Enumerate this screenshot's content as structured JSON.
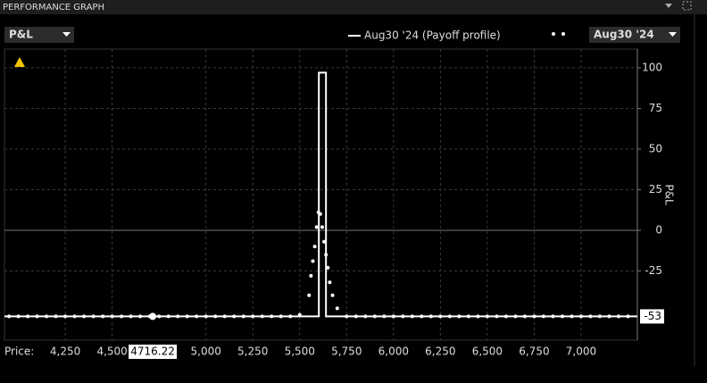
{
  "header": {
    "title": "PERFORMANCE GRAPH"
  },
  "controls": {
    "metric": "P&L",
    "date": "Aug30 '24"
  },
  "chart_data": {
    "type": "line",
    "y_label": "P&L",
    "x_label": "Price:",
    "xlim": [
      3926,
      7300
    ],
    "ylim": [
      -67.6,
      111.5
    ],
    "xticks": [
      {
        "value": 4250,
        "label": "4,250"
      },
      {
        "value": 4500,
        "label": "4,500"
      },
      {
        "value": 5000,
        "label": "5,000"
      },
      {
        "value": 5250,
        "label": "5,250"
      },
      {
        "value": 5500,
        "label": "5,500"
      },
      {
        "value": 5750,
        "label": "5,750"
      },
      {
        "value": 6000,
        "label": "6,000"
      },
      {
        "value": 6250,
        "label": "6,250"
      },
      {
        "value": 6500,
        "label": "6,500"
      },
      {
        "value": 6750,
        "label": "6,750"
      },
      {
        "value": 7000,
        "label": "7,000"
      }
    ],
    "yticks": [
      100,
      75,
      50,
      25,
      0,
      -25
    ],
    "grid": true,
    "series": [
      {
        "name": "Aug30 '24 (Payoff profile)",
        "color": "#ffffff",
        "style": "line",
        "x": [
          3926,
          5602,
          5602,
          5640,
          5640,
          7300
        ],
        "values": [
          -53,
          -53,
          97,
          97,
          -53,
          -53
        ]
      },
      {
        "color": "#ffffff",
        "style": "dots",
        "x": [
          3950,
          4000,
          4050,
          4100,
          4150,
          4200,
          4250,
          4300,
          4350,
          4400,
          4450,
          4500,
          4550,
          4600,
          4650,
          4700,
          4750,
          4800,
          4850,
          4900,
          4950,
          5000,
          5050,
          5100,
          5150,
          5200,
          5250,
          5300,
          5350,
          5400,
          5450,
          5500,
          5550,
          5560,
          5570,
          5580,
          5590,
          5600,
          5610,
          5620,
          5630,
          5640,
          5650,
          5660,
          5675,
          5700,
          5750,
          5800,
          5850,
          5900,
          5950,
          6000,
          6050,
          6100,
          6150,
          6200,
          6250,
          6300,
          6350,
          6400,
          6450,
          6500,
          6550,
          6600,
          6650,
          6700,
          6750,
          6800,
          6850,
          6900,
          6950,
          7000,
          7050,
          7100,
          7150,
          7200,
          7250
        ],
        "values": [
          -53,
          -53,
          -53,
          -53,
          -53,
          -53,
          -53,
          -53,
          -53,
          -53,
          -53,
          -53,
          -53,
          -53,
          -53,
          -53,
          -53,
          -53,
          -53,
          -53,
          -53,
          -53,
          -53,
          -53,
          -53,
          -53,
          -53,
          -53,
          -53,
          -53,
          -53,
          -52,
          -40,
          -28,
          -19,
          -10,
          2,
          11,
          10,
          2,
          -7,
          -15,
          -23,
          -32,
          -40,
          -48,
          -53,
          -53,
          -53,
          -53,
          -53,
          -53,
          -53,
          -53,
          -53,
          -53,
          -53,
          -53,
          -53,
          -53,
          -53,
          -53,
          -53,
          -53,
          -53,
          -53,
          -53,
          -53,
          -53,
          -53,
          -53,
          -53,
          -53,
          -53,
          -53,
          -53,
          -53
        ]
      }
    ],
    "current_price": 4716.22,
    "current_pnl": -53
  }
}
